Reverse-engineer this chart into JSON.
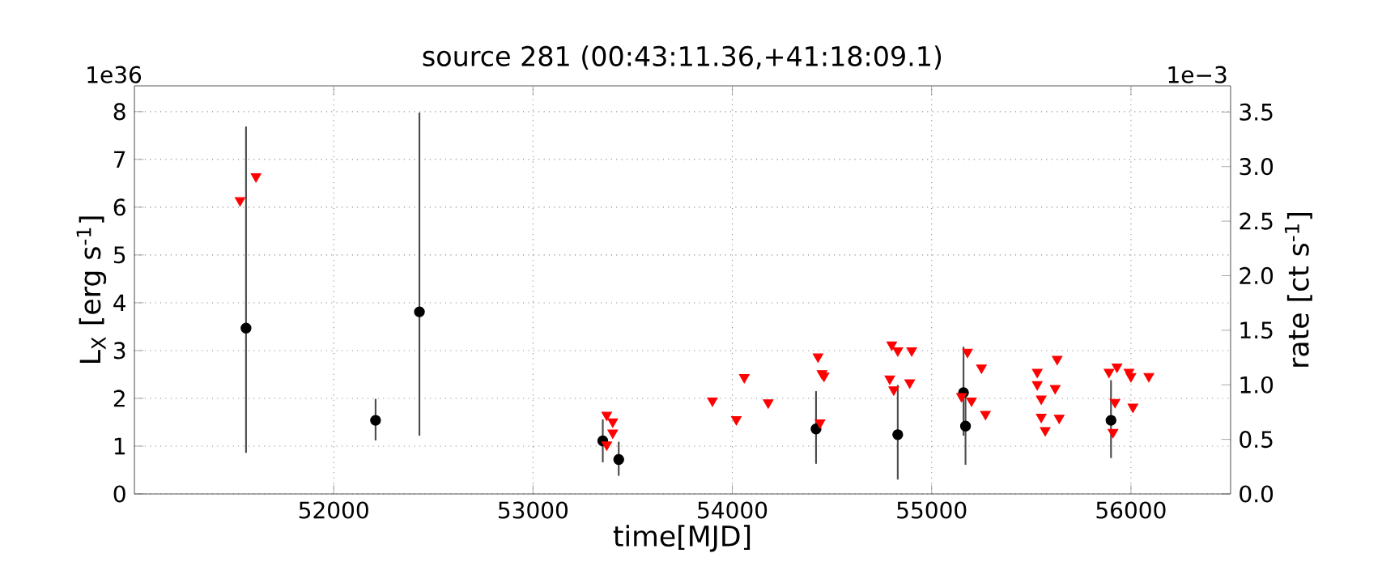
{
  "chart_data": {
    "type": "scatter",
    "title": "source 281    (00:43:11.36,+41:18:09.1)",
    "xlabel": "time[MJD]",
    "ylabel": "L$_{X}$ [erg s$^{-1}$]",
    "y2label": "rate [ct s$^{-1}$]",
    "annotations": [
      "1e36",
      "1e−3"
    ],
    "xlim": [
      51000,
      56500
    ],
    "xticks": [
      52000,
      53000,
      54000,
      55000,
      56000
    ],
    "ylim": [
      0,
      8.54
    ],
    "yticks": [
      0,
      1,
      2,
      3,
      4,
      5,
      6,
      7,
      8
    ],
    "y2lim": [
      0,
      3.74
    ],
    "y2ticks": [
      {
        "value": 0,
        "label": "0.0"
      },
      {
        "value": 0.5,
        "label": "0.5"
      },
      {
        "value": 1,
        "label": "1.0"
      },
      {
        "value": 1.5,
        "label": "1.5"
      },
      {
        "value": 2,
        "label": "2.0"
      },
      {
        "value": 2.5,
        "label": "2.5"
      },
      {
        "value": 3,
        "label": "3.0"
      },
      {
        "value": 3.5,
        "label": "3.5"
      }
    ],
    "grid": true,
    "series": [
      {
        "color": "#000000",
        "marker": "circle",
        "x": [
          51560,
          52210,
          52430,
          53350,
          53430,
          54420,
          54830,
          55160,
          55170,
          55900
        ],
        "values": [
          3.47,
          1.54,
          3.81,
          1.11,
          0.72,
          1.36,
          1.24,
          2.12,
          1.42,
          1.54
        ],
        "errors": [
          [
            0.86,
            7.69
          ],
          [
            1.12,
            1.99
          ],
          [
            1.22,
            7.98
          ],
          [
            0.66,
            1.56
          ],
          [
            0.38,
            1.09
          ],
          [
            0.63,
            2.15
          ],
          [
            0.3,
            2.28
          ],
          [
            1.22,
            3.08
          ],
          [
            0.61,
            2.12
          ],
          [
            0.75,
            2.38
          ]
        ]
      },
      {
        "color": "#ff0000",
        "marker": "triangle",
        "x": [
          51530,
          51610,
          53370,
          53400,
          53400,
          53370,
          53900,
          54020,
          54060,
          54180,
          54430,
          54450,
          54460,
          54440,
          54800,
          54830,
          54900,
          54790,
          54810,
          54890,
          55180,
          55250,
          55150,
          55200,
          55270,
          55530,
          55530,
          55550,
          55550,
          55570,
          55630,
          55620,
          55640,
          55890,
          55930,
          55920,
          55910,
          55990,
          56000,
          56010,
          56090
        ],
        "values": [
          6.14,
          6.64,
          1.65,
          1.51,
          1.28,
          1.03,
          1.95,
          1.56,
          2.44,
          1.91,
          2.87,
          2.52,
          2.47,
          1.49,
          3.12,
          3.0,
          3.0,
          2.41,
          2.18,
          2.33,
          2.97,
          2.64,
          2.04,
          1.95,
          1.67,
          2.55,
          2.29,
          1.99,
          1.61,
          1.33,
          2.82,
          2.21,
          1.59,
          2.55,
          2.66,
          1.92,
          1.29,
          2.55,
          2.46,
          1.82,
          2.46
        ]
      }
    ]
  }
}
